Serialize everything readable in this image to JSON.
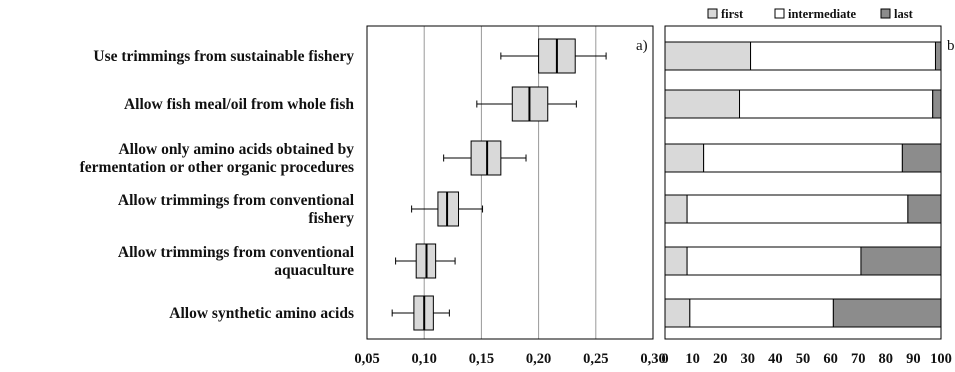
{
  "chart_data": [
    {
      "type": "box",
      "panel_label": "a)",
      "categories": [
        "Use trimmings from sustainable fishery",
        "Allow fish meal/oil from whole fish",
        "Allow only amino acids obtained by fermentation or other organic procedures",
        "Allow trimmings from conventional fishery",
        "Allow trimmings from conventional aquaculture",
        "Allow synthetic amino acids"
      ],
      "category_lines": [
        [
          "Use trimmings from sustainable fishery"
        ],
        [
          "Allow fish meal/oil from whole fish"
        ],
        [
          "Allow only amino acids obtained by",
          "fermentation or other organic procedures"
        ],
        [
          "Allow trimmings from conventional",
          "fishery"
        ],
        [
          "Allow trimmings from conventional",
          "aquaculture"
        ],
        [
          "Allow synthetic amino acids"
        ]
      ],
      "boxes": [
        {
          "whisker_low": 0.167,
          "q1": 0.2,
          "median": 0.216,
          "q3": 0.232,
          "whisker_high": 0.259
        },
        {
          "whisker_low": 0.146,
          "q1": 0.177,
          "median": 0.192,
          "q3": 0.208,
          "whisker_high": 0.233
        },
        {
          "whisker_low": 0.117,
          "q1": 0.141,
          "median": 0.155,
          "q3": 0.167,
          "whisker_high": 0.189
        },
        {
          "whisker_low": 0.089,
          "q1": 0.112,
          "median": 0.12,
          "q3": 0.13,
          "whisker_high": 0.151
        },
        {
          "whisker_low": 0.075,
          "q1": 0.093,
          "median": 0.102,
          "q3": 0.11,
          "whisker_high": 0.127
        },
        {
          "whisker_low": 0.072,
          "q1": 0.091,
          "median": 0.1,
          "q3": 0.108,
          "whisker_high": 0.122
        }
      ],
      "xlim": [
        0.05,
        0.3
      ],
      "x_ticks": [
        0.05,
        0.1,
        0.15,
        0.2,
        0.25,
        0.3
      ],
      "x_tick_labels": [
        "0,05",
        "0,10",
        "0,15",
        "0,20",
        "0,25",
        "0,30"
      ],
      "grid": "vertical",
      "box_color": "#d9d9d9"
    },
    {
      "type": "stacked_bar",
      "orientation": "horizontal",
      "panel_label": "b)",
      "series": [
        {
          "name": "first",
          "color": "#d9d9d9",
          "values": [
            31,
            27,
            14,
            8,
            8,
            9
          ]
        },
        {
          "name": "intermediate",
          "color": "#ffffff",
          "values": [
            67,
            70,
            72,
            80,
            63,
            52
          ]
        },
        {
          "name": "last",
          "color": "#8c8c8c",
          "values": [
            2,
            3,
            14,
            12,
            29,
            39
          ]
        }
      ],
      "xlim": [
        0,
        100
      ],
      "x_ticks": [
        0,
        10,
        20,
        30,
        40,
        50,
        60,
        70,
        80,
        90,
        100
      ],
      "x_tick_labels": [
        "0",
        "10",
        "20",
        "30",
        "40",
        "50",
        "60",
        "70",
        "80",
        "90",
        "100"
      ],
      "legend_position": "top"
    }
  ]
}
